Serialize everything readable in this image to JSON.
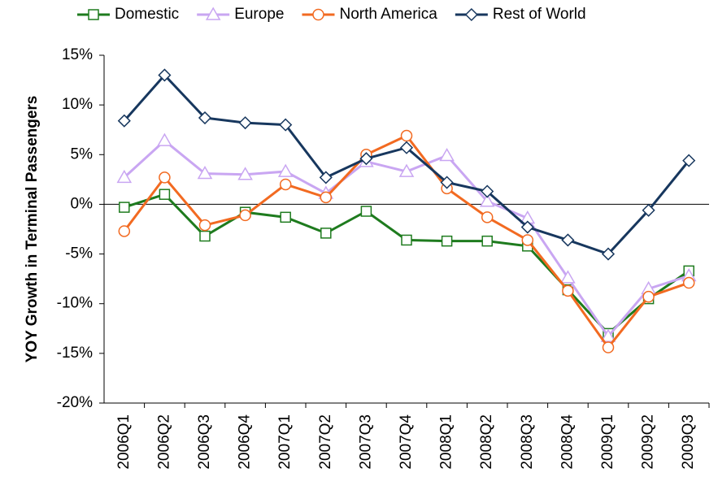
{
  "chart_data": {
    "type": "line",
    "y_label": "YOY Growth in Terminal Passengers",
    "categories": [
      "2006Q1",
      "2006Q2",
      "2006Q3",
      "2006Q4",
      "2007Q1",
      "2007Q2",
      "2007Q3",
      "2007Q4",
      "2008Q1",
      "2008Q2",
      "2008Q3",
      "2008Q4",
      "2009Q1",
      "2009Q2",
      "2009Q3"
    ],
    "series": [
      {
        "name": "Domestic",
        "color": "#1e7b1e",
        "marker": "square",
        "values": [
          -0.3,
          1.0,
          -3.2,
          -0.8,
          -1.3,
          -2.9,
          -0.7,
          -3.6,
          -3.7,
          -3.7,
          -4.2,
          -8.6,
          -13.0,
          -9.5,
          -6.7
        ]
      },
      {
        "name": "Europe",
        "color": "#c9a6f2",
        "marker": "triangle",
        "values": [
          2.7,
          6.4,
          3.1,
          3.0,
          3.3,
          1.1,
          4.3,
          3.3,
          4.9,
          0.3,
          -1.4,
          -7.4,
          -13.3,
          -8.5,
          -7.2
        ]
      },
      {
        "name": "North America",
        "color": "#f26a21",
        "marker": "circle",
        "values": [
          -2.7,
          2.7,
          -2.1,
          -1.1,
          2.0,
          0.7,
          5.0,
          6.9,
          1.6,
          -1.3,
          -3.6,
          -8.7,
          -14.4,
          -9.3,
          -7.9
        ]
      },
      {
        "name": "Rest of World",
        "color": "#17375e",
        "marker": "diamond",
        "values": [
          8.4,
          13.0,
          8.7,
          8.2,
          8.0,
          2.7,
          4.6,
          5.7,
          2.2,
          1.3,
          -2.3,
          -3.6,
          -5.0,
          -0.6,
          4.4
        ]
      }
    ],
    "ylim": [
      -20,
      15
    ],
    "yticks": [
      {
        "value": -20,
        "label": "-20%"
      },
      {
        "value": -15,
        "label": "-15%"
      },
      {
        "value": -10,
        "label": "-10%"
      },
      {
        "value": -5,
        "label": "-5%"
      },
      {
        "value": 0,
        "label": "0%"
      },
      {
        "value": 5,
        "label": "5%"
      },
      {
        "value": 10,
        "label": "10%"
      },
      {
        "value": 15,
        "label": "15%"
      }
    ],
    "legend": "top"
  }
}
